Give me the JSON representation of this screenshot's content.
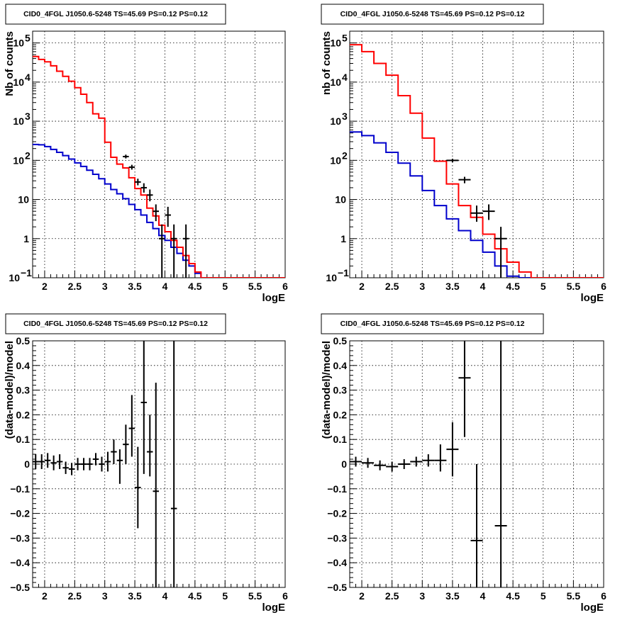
{
  "colors": {
    "data": "#000000",
    "total_model": "#ff0000",
    "source_model": "#0000cc",
    "grid": "#000000",
    "frame": "#000000"
  },
  "chart_data": [
    {
      "type": "line",
      "title": "CID0_4FGL J1050.6-5248 TS=45.69 PS=0.12 PS=0.12",
      "xlabel": "logE",
      "ylabel": "Nb of counts",
      "xlim": [
        1.8,
        6.0
      ],
      "ylim": [
        0.1,
        200000
      ],
      "yscale": "log",
      "grid": true,
      "xticks": [
        "2",
        "2.5",
        "3",
        "3.5",
        "4",
        "4.5",
        "5",
        "5.5",
        "6"
      ],
      "yticks": [
        {
          "value": 0.1,
          "label": "10",
          "sup": "−1"
        },
        {
          "value": 1,
          "label": "1",
          "sup": ""
        },
        {
          "value": 10,
          "label": "10",
          "sup": ""
        },
        {
          "value": 100,
          "label": "10",
          "sup": "2"
        },
        {
          "value": 1000,
          "label": "10",
          "sup": "3"
        },
        {
          "value": 10000,
          "label": "10",
          "sup": "4"
        },
        {
          "value": 100000,
          "label": "10",
          "sup": "5"
        }
      ],
      "bin_edges": [
        1.8,
        1.9,
        2.0,
        2.1,
        2.2,
        2.3,
        2.4,
        2.5,
        2.6,
        2.7,
        2.8,
        2.9,
        3.0,
        3.1,
        3.2,
        3.3,
        3.4,
        3.5,
        3.6,
        3.7,
        3.8,
        3.9,
        4.0,
        4.1,
        4.2,
        4.3,
        4.4,
        4.5,
        4.6,
        4.7,
        4.8,
        4.9,
        5.0,
        5.1,
        5.2,
        5.3,
        5.4,
        5.5,
        5.6,
        5.7,
        5.8,
        5.9,
        6.0
      ],
      "series": [
        {
          "name": "total model",
          "color": "#ff0000",
          "values": [
            45000,
            38000,
            33000,
            26000,
            19000,
            14000,
            10500,
            7200,
            4900,
            3000,
            1550,
            1200,
            290,
            120,
            80,
            64,
            36,
            19,
            13,
            6,
            3.8,
            2.2,
            1.5,
            0.9,
            0.6,
            0.37,
            0.23,
            0.14,
            0.1,
            0.1,
            0.1,
            0.1,
            0.1,
            0.1,
            0.1,
            0.1,
            0.1,
            0.1,
            0.1,
            0.1,
            0.1,
            0.1
          ]
        },
        {
          "name": "source model",
          "color": "#0000cc",
          "values": [
            255,
            250,
            225,
            190,
            160,
            132,
            108,
            86,
            70,
            56,
            44,
            34,
            25,
            18,
            14,
            10.5,
            7.5,
            5.5,
            4,
            2.6,
            1.8,
            1.2,
            0.9,
            0.6,
            0.42,
            0.28,
            0.2,
            0.13,
            0.1,
            0.1,
            0.1,
            0.1,
            0.1,
            0.1,
            0.1,
            0.1,
            0.1,
            0.1,
            0.1,
            0.1,
            0.1,
            0.1
          ]
        }
      ],
      "points": [
        {
          "x": 3.35,
          "y": 125,
          "xerr": 0.05,
          "ylo": 112,
          "yhi": 140
        },
        {
          "x": 3.45,
          "y": 67,
          "xerr": 0.05,
          "ylo": 58,
          "yhi": 77
        },
        {
          "x": 3.55,
          "y": 28,
          "xerr": 0.05,
          "ylo": 23,
          "yhi": 34
        },
        {
          "x": 3.65,
          "y": 20,
          "xerr": 0.05,
          "ylo": 15,
          "yhi": 26
        },
        {
          "x": 3.75,
          "y": 13,
          "xerr": 0.05,
          "ylo": 9,
          "yhi": 18
        },
        {
          "x": 3.85,
          "y": 5,
          "xerr": 0.05,
          "ylo": 2.8,
          "yhi": 7.5
        },
        {
          "x": 3.95,
          "y": 1,
          "xerr": 0.05,
          "ylo": 0.1,
          "yhi": 2.3
        },
        {
          "x": 4.05,
          "y": 4,
          "xerr": 0.05,
          "ylo": 2,
          "yhi": 6.5
        },
        {
          "x": 4.15,
          "y": 1,
          "xerr": 0.05,
          "ylo": 0.1,
          "yhi": 2.3
        },
        {
          "x": 4.35,
          "y": 1,
          "xerr": 0.05,
          "ylo": 0.1,
          "yhi": 2.3
        }
      ]
    },
    {
      "type": "line",
      "title": "CID0_4FGL J1050.6-5248 TS=45.69 PS=0.12 PS=0.12",
      "xlabel": "logE",
      "ylabel": "nb of counts",
      "xlim": [
        1.8,
        6.0
      ],
      "ylim": [
        0.1,
        200000
      ],
      "yscale": "log",
      "grid": true,
      "xticks": [
        "2",
        "2.5",
        "3",
        "3.5",
        "4",
        "4.5",
        "5",
        "5.5",
        "6"
      ],
      "yticks": [
        {
          "value": 0.1,
          "label": "10",
          "sup": "−1"
        },
        {
          "value": 1,
          "label": "1",
          "sup": ""
        },
        {
          "value": 10,
          "label": "10",
          "sup": ""
        },
        {
          "value": 100,
          "label": "10",
          "sup": "2"
        },
        {
          "value": 1000,
          "label": "10",
          "sup": "3"
        },
        {
          "value": 10000,
          "label": "10",
          "sup": "4"
        },
        {
          "value": 100000,
          "label": "10",
          "sup": "5"
        }
      ],
      "bin_edges": [
        1.8,
        2.0,
        2.2,
        2.4,
        2.6,
        2.8,
        3.0,
        3.2,
        3.4,
        3.6,
        3.8,
        4.0,
        4.2,
        4.4,
        4.6,
        4.8,
        5.0,
        5.2,
        5.4,
        5.6,
        5.8,
        6.0
      ],
      "series": [
        {
          "name": "total model",
          "color": "#ff0000",
          "values": [
            90000,
            60000,
            30000,
            15000,
            4500,
            1600,
            370,
            95,
            25,
            7,
            3.5,
            1.3,
            0.55,
            0.25,
            0.14,
            0.1,
            0.1,
            0.1,
            0.1,
            0.1,
            0.1
          ]
        },
        {
          "name": "source model",
          "color": "#0000cc",
          "values": [
            530,
            430,
            280,
            160,
            85,
            40,
            17,
            7,
            3.2,
            1.6,
            0.9,
            0.45,
            0.2,
            0.11,
            0.1,
            0.1,
            0.1,
            0.1,
            0.1,
            0.1,
            0.1
          ]
        }
      ],
      "points": [
        {
          "x": 3.5,
          "y": 100,
          "xerr": 0.1,
          "ylo": 90,
          "yhi": 110
        },
        {
          "x": 3.7,
          "y": 32,
          "xerr": 0.1,
          "ylo": 26,
          "yhi": 38
        },
        {
          "x": 3.9,
          "y": 4.5,
          "xerr": 0.1,
          "ylo": 2.7,
          "yhi": 7
        },
        {
          "x": 4.1,
          "y": 5,
          "xerr": 0.1,
          "ylo": 3,
          "yhi": 7.5
        },
        {
          "x": 4.3,
          "y": 1,
          "xerr": 0.1,
          "ylo": 0.1,
          "yhi": 2
        }
      ]
    },
    {
      "type": "scatter",
      "title": "CID0_4FGL J1050.6-5248 TS=45.69 PS=0.12 PS=0.12",
      "xlabel": "logE",
      "ylabel": "(data-model)/model",
      "xlim": [
        1.8,
        6.0
      ],
      "ylim": [
        -0.5,
        0.5
      ],
      "grid": true,
      "xticks": [
        "2",
        "2.5",
        "3",
        "3.5",
        "4",
        "4.5",
        "5",
        "5.5",
        "6"
      ],
      "yticks": [
        "−0.5",
        "−0.4",
        "−0.3",
        "−0.2",
        "−0.1",
        "0",
        "0.1",
        "0.2",
        "0.3",
        "0.4",
        "0.5"
      ],
      "points": [
        {
          "x": 1.85,
          "y": 0.01,
          "xerr": 0.05,
          "ylo": -0.02,
          "yhi": 0.04
        },
        {
          "x": 1.95,
          "y": 0.01,
          "xerr": 0.05,
          "ylo": -0.02,
          "yhi": 0.04
        },
        {
          "x": 2.05,
          "y": 0.015,
          "xerr": 0.05,
          "ylo": -0.015,
          "yhi": 0.045
        },
        {
          "x": 2.15,
          "y": 0.005,
          "xerr": 0.05,
          "ylo": -0.025,
          "yhi": 0.035
        },
        {
          "x": 2.25,
          "y": 0.01,
          "xerr": 0.05,
          "ylo": -0.02,
          "yhi": 0.04
        },
        {
          "x": 2.35,
          "y": -0.015,
          "xerr": 0.05,
          "ylo": -0.04,
          "yhi": 0.01
        },
        {
          "x": 2.45,
          "y": -0.02,
          "xerr": 0.05,
          "ylo": -0.045,
          "yhi": 0.005
        },
        {
          "x": 2.55,
          "y": 0.0,
          "xerr": 0.05,
          "ylo": -0.025,
          "yhi": 0.025
        },
        {
          "x": 2.65,
          "y": 0.0,
          "xerr": 0.05,
          "ylo": -0.025,
          "yhi": 0.025
        },
        {
          "x": 2.75,
          "y": 0.0,
          "xerr": 0.05,
          "ylo": -0.025,
          "yhi": 0.025
        },
        {
          "x": 2.85,
          "y": 0.02,
          "xerr": 0.05,
          "ylo": -0.005,
          "yhi": 0.045
        },
        {
          "x": 2.95,
          "y": 0.0,
          "xerr": 0.05,
          "ylo": -0.03,
          "yhi": 0.03
        },
        {
          "x": 3.05,
          "y": 0.01,
          "xerr": 0.05,
          "ylo": -0.03,
          "yhi": 0.05
        },
        {
          "x": 3.15,
          "y": 0.05,
          "xerr": 0.05,
          "ylo": 0.0,
          "yhi": 0.1
        },
        {
          "x": 3.25,
          "y": 0.015,
          "xerr": 0.05,
          "ylo": -0.08,
          "yhi": 0.06
        },
        {
          "x": 3.35,
          "y": 0.08,
          "xerr": 0.05,
          "ylo": 0.0,
          "yhi": 0.16
        },
        {
          "x": 3.45,
          "y": 0.145,
          "xerr": 0.05,
          "ylo": 0.03,
          "yhi": 0.28
        },
        {
          "x": 3.55,
          "y": -0.095,
          "xerr": 0.05,
          "ylo": -0.26,
          "yhi": 0.07
        },
        {
          "x": 3.65,
          "y": 0.25,
          "xerr": 0.05,
          "ylo": -0.04,
          "yhi": 0.5
        },
        {
          "x": 3.75,
          "y": 0.05,
          "xerr": 0.05,
          "ylo": -0.05,
          "yhi": 0.2
        },
        {
          "x": 3.85,
          "y": -0.11,
          "xerr": 0.05,
          "ylo": -0.5,
          "yhi": 0.33
        },
        {
          "x": 4.15,
          "y": -0.18,
          "xerr": 0.05,
          "ylo": -0.5,
          "yhi": 0.5
        }
      ]
    },
    {
      "type": "scatter",
      "title": "CID0_4FGL J1050.6-5248 TS=45.69 PS=0.12 PS=0.12",
      "xlabel": "logE",
      "ylabel": "(data-model)/model",
      "xlim": [
        1.8,
        6.0
      ],
      "ylim": [
        -0.5,
        0.5
      ],
      "grid": true,
      "xticks": [
        "2",
        "2.5",
        "3",
        "3.5",
        "4",
        "4.5",
        "5",
        "5.5",
        "6"
      ],
      "yticks": [
        "−0.5",
        "−0.4",
        "−0.3",
        "−0.2",
        "−0.1",
        "0",
        "0.1",
        "0.2",
        "0.3",
        "0.4",
        "0.5"
      ],
      "points": [
        {
          "x": 1.9,
          "y": 0.01,
          "xerr": 0.1,
          "ylo": -0.01,
          "yhi": 0.03
        },
        {
          "x": 2.1,
          "y": 0.005,
          "xerr": 0.1,
          "ylo": -0.015,
          "yhi": 0.025
        },
        {
          "x": 2.3,
          "y": -0.005,
          "xerr": 0.1,
          "ylo": -0.025,
          "yhi": 0.015
        },
        {
          "x": 2.5,
          "y": -0.01,
          "xerr": 0.1,
          "ylo": -0.03,
          "yhi": 0.01
        },
        {
          "x": 2.7,
          "y": 0.0,
          "xerr": 0.1,
          "ylo": -0.02,
          "yhi": 0.02
        },
        {
          "x": 2.9,
          "y": 0.01,
          "xerr": 0.1,
          "ylo": -0.01,
          "yhi": 0.03
        },
        {
          "x": 3.1,
          "y": 0.015,
          "xerr": 0.1,
          "ylo": -0.01,
          "yhi": 0.04
        },
        {
          "x": 3.3,
          "y": 0.015,
          "xerr": 0.1,
          "ylo": -0.03,
          "yhi": 0.08
        },
        {
          "x": 3.5,
          "y": 0.06,
          "xerr": 0.1,
          "ylo": -0.05,
          "yhi": 0.17
        },
        {
          "x": 3.7,
          "y": 0.35,
          "xerr": 0.1,
          "ylo": 0.11,
          "yhi": 0.5
        },
        {
          "x": 3.9,
          "y": -0.31,
          "xerr": 0.1,
          "ylo": -0.5,
          "yhi": 0.0
        },
        {
          "x": 4.3,
          "y": -0.25,
          "xerr": 0.1,
          "ylo": -0.5,
          "yhi": 0.5
        }
      ]
    }
  ]
}
